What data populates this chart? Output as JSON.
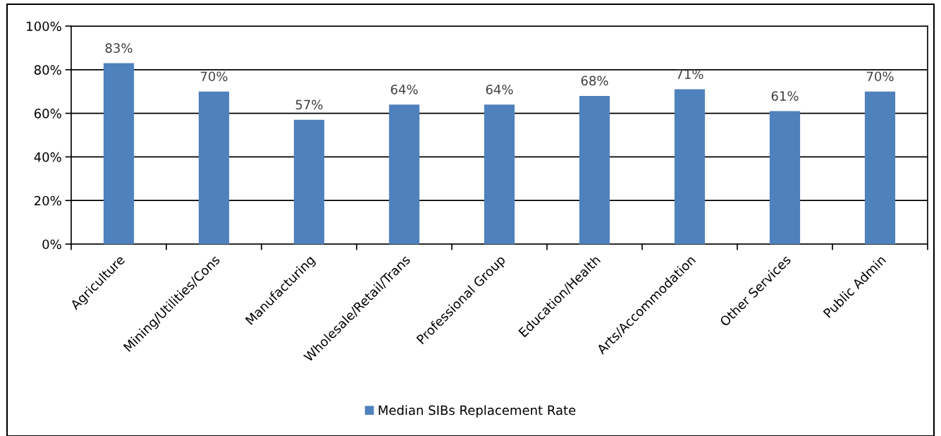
{
  "chart_data": {
    "type": "bar",
    "categories": [
      "Agriculture",
      "Mining/Utilities/Cons",
      "Manufacturing",
      "Wholesale/Retail/Trans",
      "Professional Group",
      "Education/Health",
      "Arts/Accommodation",
      "Other Services",
      "Public Admin"
    ],
    "series": [
      {
        "name": "Median SIBs Replacement Rate",
        "color": "#4f81bd",
        "values": [
          83,
          70,
          57,
          64,
          64,
          68,
          71,
          61,
          70
        ],
        "value_labels": [
          "83%",
          "70%",
          "57%",
          "64%",
          "64%",
          "68%",
          "71%",
          "61%",
          "70%"
        ]
      }
    ],
    "ylim": [
      0,
      100
    ],
    "yticks": [
      {
        "value": 0,
        "label": "0%"
      },
      {
        "value": 20,
        "label": "20%"
      },
      {
        "value": 40,
        "label": "40%"
      },
      {
        "value": 60,
        "label": "60%"
      },
      {
        "value": 80,
        "label": "80%"
      },
      {
        "value": 100,
        "label": "100%"
      }
    ],
    "grid": "y",
    "legend": "bottom"
  }
}
